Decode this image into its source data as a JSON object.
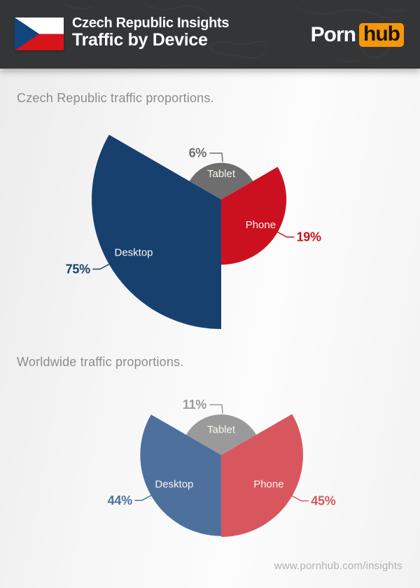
{
  "header": {
    "title_line1": "Czech Republic Insights",
    "title_line2": "Traffic by Device",
    "logo_part1": "Porn",
    "logo_part2": "hub",
    "flag_country": "Czech Republic"
  },
  "chart_data": [
    {
      "type": "pie",
      "variant": "rose-equal-angle",
      "title": "Czech Republic traffic proportions.",
      "unit": "%",
      "angle_per_slice_deg": 120,
      "radius_scale": "sqrt",
      "legend_position": "in-slice",
      "slices": [
        {
          "label": "Tablet",
          "value": 6,
          "display": "6%",
          "color": "#6e6e6e"
        },
        {
          "label": "Phone",
          "value": 19,
          "display": "19%",
          "color": "#cb1120"
        },
        {
          "label": "Desktop",
          "value": 75,
          "display": "75%",
          "color": "#17406f"
        }
      ]
    },
    {
      "type": "pie",
      "variant": "rose-equal-angle",
      "title": "Worldwide traffic proportions.",
      "unit": "%",
      "angle_per_slice_deg": 120,
      "radius_scale": "sqrt",
      "legend_position": "in-slice",
      "slices": [
        {
          "label": "Tablet",
          "value": 11,
          "display": "11%",
          "color": "#9a9a9a"
        },
        {
          "label": "Phone",
          "value": 45,
          "display": "45%",
          "color": "#d8575f"
        },
        {
          "label": "Desktop",
          "value": 44,
          "display": "44%",
          "color": "#4e709d"
        }
      ]
    }
  ],
  "footer": {
    "url": "www.pornhub.com/insights"
  },
  "colors": {
    "header_bg": "#343537",
    "logo_orange": "#f79708",
    "flag_blue": "#11457e",
    "flag_red": "#d7141a",
    "subtitle_gray": "#8c8c8c",
    "footer_gray": "#b1b1b1"
  }
}
